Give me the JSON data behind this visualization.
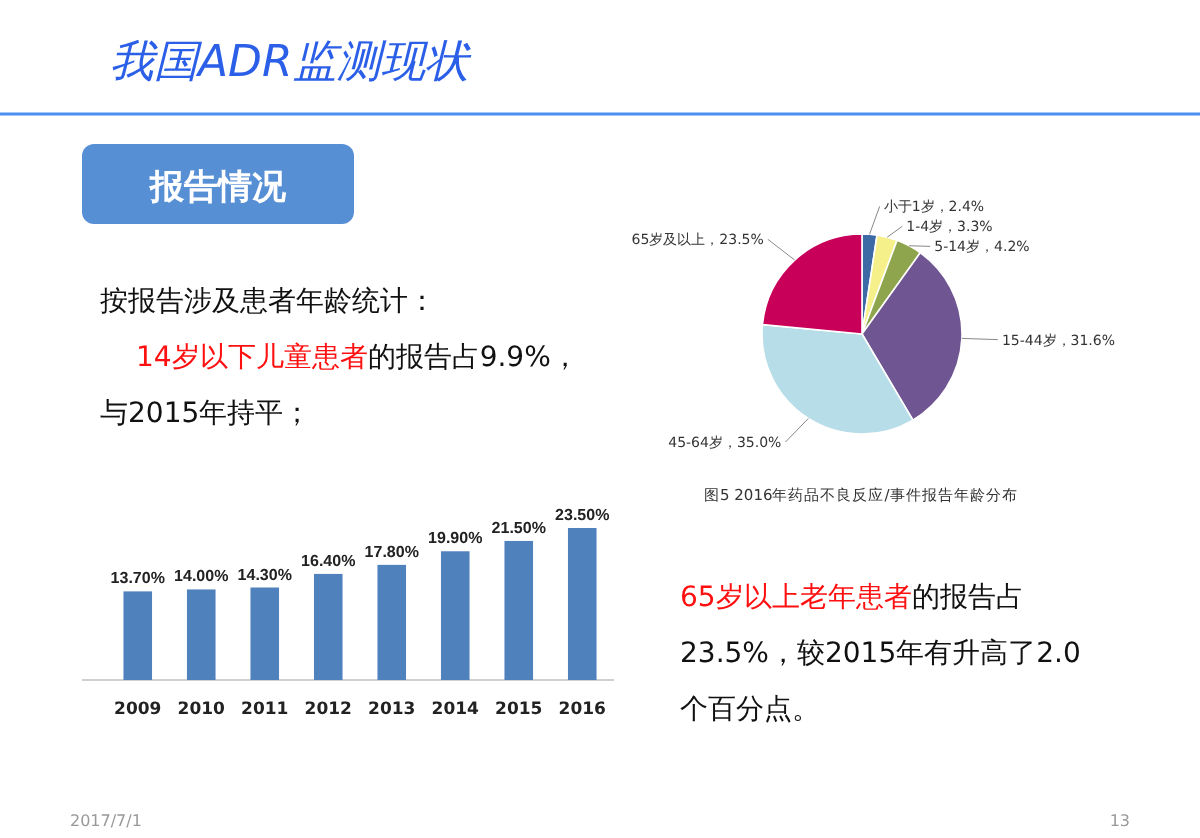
{
  "chart_data": [
    {
      "type": "other",
      "title": "我国ADR监测现状",
      "subtitle": "报告情况",
      "annotations": [
        "按报告涉及患者年龄统计：",
        "14岁以下儿童患者",
        "的报告占9.9%，",
        "与2015年持平；",
        "65岁以上老年患者",
        "的报告占",
        "23.5%，较2015年有升高了2.0",
        "个百分点。",
        "2017/7/1",
        "13"
      ]
    },
    {
      "type": "bar",
      "categories": [
        "2009",
        "2010",
        "2011",
        "2012",
        "2013",
        "2014",
        "2015",
        "2016"
      ],
      "values": [
        13.7,
        14.0,
        14.3,
        16.4,
        17.8,
        19.9,
        21.5,
        23.5
      ],
      "value_labels": [
        "13.70%",
        "14.00%",
        "14.30%",
        "16.40%",
        "17.80%",
        "19.90%",
        "21.50%",
        "23.50%"
      ],
      "color": "#4f81bd"
    },
    {
      "type": "pie",
      "title": "图5 2016年药品不良反应/事件报告年龄分布",
      "categories": [
        "小于1岁",
        "1-4岁",
        "5-14岁",
        "15-44岁",
        "45-64岁",
        "65岁及以上"
      ],
      "values": [
        2.4,
        3.3,
        4.2,
        31.6,
        35.0,
        23.5
      ],
      "value_labels": [
        "2.4%",
        "3.3%",
        "4.2%",
        "31.6%",
        "35.0%",
        "23.5%"
      ],
      "colors": [
        "#3d6aa5",
        "#f5f08a",
        "#8ea54e",
        "#6f5591",
        "#b7dde8",
        "#c8005a"
      ]
    }
  ]
}
